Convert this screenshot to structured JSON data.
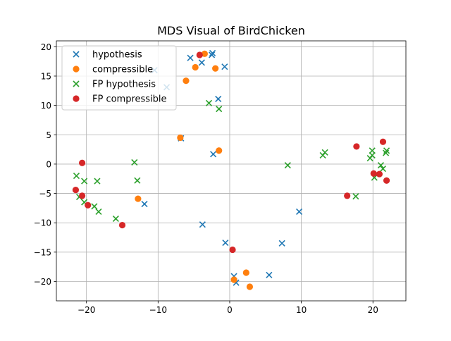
{
  "chart_data": {
    "type": "scatter",
    "title": "MDS Visual of BirdChicken",
    "xlabel": "",
    "ylabel": "",
    "xlim": [
      -24.2,
      24.6
    ],
    "ylim": [
      -23.3,
      21.0
    ],
    "xticks": [
      -20,
      -10,
      0,
      10,
      20
    ],
    "yticks": [
      -20,
      -15,
      -10,
      -5,
      0,
      5,
      10,
      15,
      20
    ],
    "grid": true,
    "legend_position": "upper-left",
    "series": [
      {
        "name": "hypothesis",
        "marker": "x",
        "color": "#1f77b4",
        "points": [
          [
            -5.5,
            18.1
          ],
          [
            -2.5,
            18.6
          ],
          [
            -2.4,
            18.9
          ],
          [
            -3.9,
            17.3
          ],
          [
            -0.7,
            16.6
          ],
          [
            -10.5,
            16.0
          ],
          [
            -8.8,
            13.1
          ],
          [
            -1.6,
            11.1
          ],
          [
            -6.8,
            4.4
          ],
          [
            -2.3,
            1.7
          ],
          [
            -11.9,
            -6.8
          ],
          [
            -3.8,
            -10.3
          ],
          [
            9.7,
            -8.1
          ],
          [
            -0.6,
            -13.4
          ],
          [
            7.3,
            -13.5
          ],
          [
            0.6,
            -19.1
          ],
          [
            0.9,
            -20.2
          ],
          [
            5.5,
            -18.9
          ]
        ]
      },
      {
        "name": "compressible",
        "marker": "o",
        "color": "#ff7f0e",
        "points": [
          [
            -3.5,
            18.8
          ],
          [
            -4.8,
            16.5
          ],
          [
            -2.0,
            16.3
          ],
          [
            -6.1,
            14.2
          ],
          [
            -6.9,
            4.5
          ],
          [
            -1.5,
            2.3
          ],
          [
            -12.8,
            -5.9
          ],
          [
            2.3,
            -18.5
          ],
          [
            0.6,
            -19.7
          ],
          [
            2.8,
            -20.9
          ]
        ]
      },
      {
        "name": "FP hypothesis",
        "marker": "x",
        "color": "#2ca02c",
        "points": [
          [
            -2.9,
            10.4
          ],
          [
            -1.5,
            9.4
          ],
          [
            -13.3,
            0.3
          ],
          [
            -21.4,
            -2.0
          ],
          [
            -20.3,
            -2.9
          ],
          [
            -18.5,
            -2.9
          ],
          [
            -12.9,
            -2.8
          ],
          [
            -21.0,
            -5.6
          ],
          [
            -20.3,
            -6.5
          ],
          [
            -18.9,
            -7.2
          ],
          [
            -18.3,
            -8.1
          ],
          [
            -15.9,
            -9.3
          ],
          [
            8.1,
            -0.2
          ],
          [
            13.0,
            1.5
          ],
          [
            13.3,
            2.0
          ],
          [
            17.6,
            -5.5
          ],
          [
            19.6,
            1.0
          ],
          [
            19.9,
            1.5
          ],
          [
            19.9,
            2.3
          ],
          [
            21.8,
            1.9
          ],
          [
            21.9,
            2.3
          ],
          [
            21.1,
            -0.2
          ],
          [
            21.4,
            -0.8
          ],
          [
            20.2,
            -2.3
          ]
        ]
      },
      {
        "name": "FP compressible",
        "marker": "o",
        "color": "#d62728",
        "points": [
          [
            -4.2,
            18.6
          ],
          [
            -20.6,
            0.2
          ],
          [
            -21.5,
            -4.4
          ],
          [
            -20.6,
            -5.4
          ],
          [
            -19.8,
            -7.0
          ],
          [
            -15.0,
            -10.4
          ],
          [
            0.4,
            -14.6
          ],
          [
            16.4,
            -5.4
          ],
          [
            17.7,
            3.0
          ],
          [
            21.4,
            3.8
          ],
          [
            20.1,
            -1.6
          ],
          [
            20.9,
            -1.7
          ],
          [
            21.9,
            -2.8
          ]
        ]
      }
    ]
  }
}
